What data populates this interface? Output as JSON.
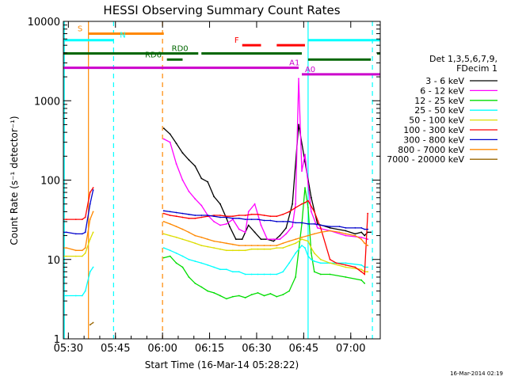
{
  "chart_data": {
    "type": "line",
    "title": "HESSI Observing Summary Count Rates",
    "xlabel": "Start Time (16-Mar-14 05:28:22)",
    "ylabel": "Count Rate (s⁻¹ detector⁻¹)",
    "x_unit": "minutes after 05:28:22 (UT, 16-Mar-2014)",
    "xlim": [
      0,
      101
    ],
    "ylim": [
      1,
      10000
    ],
    "yscale": "log",
    "x_ticks": [
      {
        "value": 1.6,
        "label": "05:30"
      },
      {
        "value": 16.6,
        "label": "05:45"
      },
      {
        "value": 31.6,
        "label": "06:00"
      },
      {
        "value": 46.6,
        "label": "06:15"
      },
      {
        "value": 61.6,
        "label": "06:30"
      },
      {
        "value": 76.6,
        "label": "06:45"
      },
      {
        "value": 91.6,
        "label": "07:00"
      }
    ],
    "y_ticks": [
      {
        "value": 1,
        "label": "1"
      },
      {
        "value": 10,
        "label": "10"
      },
      {
        "value": 100,
        "label": "100"
      },
      {
        "value": 1000,
        "label": "1000"
      },
      {
        "value": 10000,
        "label": "10000"
      }
    ],
    "legend": {
      "position": "right",
      "header": [
        "Det 1,3,5,6,7,9,",
        "FDecim 1"
      ]
    },
    "series": [
      {
        "name": "3 - 6 keV",
        "color": "#000000",
        "x": [
          7.5,
          8.5,
          9.5,
          31.5,
          32,
          34,
          36,
          38,
          40,
          42,
          44,
          46,
          48,
          50,
          52,
          53,
          55,
          57,
          59,
          61,
          63,
          65,
          67,
          69,
          71,
          73,
          75,
          77,
          79,
          81,
          85,
          90,
          93,
          95,
          96,
          97,
          98
        ],
        "y": [
          0,
          0,
          0,
          0,
          450,
          380,
          290,
          220,
          180,
          150,
          105,
          95,
          62,
          50,
          33,
          26,
          18,
          18,
          27,
          22,
          18,
          18,
          17,
          20,
          25,
          50,
          500,
          170,
          60,
          28,
          25,
          23,
          21,
          22,
          20,
          22,
          22
        ]
      },
      {
        "name": "6 - 12 keV",
        "color": "#ff00ff",
        "x": [
          31.5,
          32,
          34,
          36,
          38,
          40,
          42,
          44,
          46,
          48,
          50,
          52,
          54,
          56,
          58,
          59,
          61,
          63,
          65,
          67,
          69,
          71,
          73,
          74,
          75,
          76,
          77,
          78,
          79,
          81,
          85,
          90,
          95,
          97
        ],
        "y": [
          0,
          330,
          300,
          160,
          100,
          72,
          58,
          48,
          36,
          30,
          27,
          28,
          32,
          24,
          22,
          40,
          50,
          27,
          18,
          18,
          18,
          21,
          26,
          50,
          1900,
          130,
          210,
          90,
          40,
          25,
          23,
          20,
          19,
          18
        ]
      },
      {
        "name": "12 - 25 keV",
        "color": "#00dd00",
        "x": [
          31.5,
          32,
          34,
          36,
          38,
          40,
          42,
          44,
          46,
          48,
          50,
          52,
          54,
          56,
          58,
          60,
          62,
          64,
          66,
          68,
          70,
          72,
          74,
          76,
          77,
          78,
          79,
          80,
          82,
          85,
          90,
          95,
          96,
          97
        ],
        "y": [
          0,
          10.5,
          11,
          9,
          8,
          6,
          5,
          4.5,
          4,
          3.8,
          3.5,
          3.2,
          3.4,
          3.5,
          3.3,
          3.6,
          3.8,
          3.5,
          3.7,
          3.4,
          3.6,
          4,
          6,
          28,
          80,
          45,
          12,
          7,
          6.5,
          6.5,
          6,
          5.5,
          5,
          0
        ]
      },
      {
        "name": "25 - 50 keV",
        "color": "#00ffff",
        "x": [
          0,
          1,
          4,
          6,
          7,
          8.5,
          9.5,
          31.5,
          32,
          34,
          36,
          38,
          40,
          42,
          44,
          46,
          48,
          50,
          52,
          54,
          56,
          58,
          60,
          62,
          64,
          66,
          68,
          70,
          72,
          74,
          76,
          77,
          78,
          79,
          80,
          82,
          85,
          90,
          95,
          96,
          97
        ],
        "y": [
          3.5,
          3.5,
          3.5,
          3.5,
          4,
          7,
          8,
          0,
          14,
          13,
          12,
          11,
          10,
          9.5,
          9,
          8.5,
          8,
          7.5,
          7.5,
          7,
          7,
          6.5,
          6.5,
          6.5,
          6.5,
          6.5,
          6.5,
          7,
          9,
          12,
          15,
          14,
          11,
          10,
          9.5,
          9,
          9,
          9,
          8.5,
          8,
          8
        ]
      },
      {
        "name": "50 - 100 keV",
        "color": "#dddd00",
        "x": [
          0,
          1,
          4,
          6,
          7,
          8.5,
          9.5,
          31.5,
          32,
          34,
          36,
          38,
          40,
          42,
          44,
          46,
          48,
          50,
          52,
          54,
          56,
          58,
          60,
          62,
          64,
          66,
          68,
          70,
          72,
          74,
          76,
          78,
          79,
          80,
          82,
          85,
          90,
          95,
          96,
          97
        ],
        "y": [
          11,
          11,
          11,
          11,
          12,
          18,
          22,
          0,
          21,
          20,
          19,
          18,
          17,
          16,
          15,
          14.5,
          14,
          13.5,
          13,
          13,
          13,
          13,
          13.5,
          13.5,
          13.5,
          13.5,
          14,
          14,
          15,
          16,
          18,
          17,
          14,
          12,
          10,
          9,
          8,
          7.5,
          7,
          7
        ]
      },
      {
        "name": "100 - 300 keV",
        "color": "#ff0000",
        "x": [
          0,
          1,
          4,
          6,
          7,
          8.5,
          9.5,
          31.5,
          32,
          34,
          36,
          38,
          40,
          42,
          44,
          46,
          48,
          50,
          52,
          54,
          56,
          58,
          60,
          62,
          64,
          66,
          68,
          70,
          72,
          74,
          76,
          77,
          78,
          80,
          82,
          85,
          87,
          90,
          93,
          95,
          96,
          97
        ],
        "y": [
          32,
          32,
          32,
          32,
          34,
          70,
          80,
          0,
          38,
          36,
          35,
          34,
          33,
          33,
          34,
          35,
          36,
          36,
          35,
          35,
          36,
          36,
          37,
          37,
          36,
          35,
          35,
          37,
          40,
          45,
          50,
          52,
          55,
          40,
          25,
          10,
          9,
          8.5,
          8,
          7,
          6.5,
          38
        ]
      },
      {
        "name": "300 - 800 keV",
        "color": "#0000cc",
        "x": [
          0,
          1,
          4,
          6,
          7,
          8.5,
          9.5,
          31.5,
          32,
          34,
          36,
          38,
          40,
          42,
          44,
          46,
          48,
          50,
          52,
          54,
          56,
          58,
          60,
          62,
          64,
          66,
          68,
          70,
          72,
          74,
          76,
          78,
          80,
          82,
          85,
          88,
          90,
          93,
          95,
          96,
          97
        ],
        "y": [
          22,
          22,
          21,
          21,
          22,
          50,
          75,
          0,
          41,
          40,
          39,
          38,
          37,
          36,
          36,
          36,
          35,
          34,
          34,
          33,
          33,
          32,
          32,
          32,
          31,
          31,
          30,
          30,
          30,
          29,
          29,
          28,
          28,
          27,
          26,
          26,
          25,
          25,
          25,
          24,
          24
        ]
      },
      {
        "name": "800 - 7000 keV",
        "color": "#ff8800",
        "x": [
          0,
          1,
          4,
          6,
          7,
          8.5,
          9.5,
          31.5,
          32,
          34,
          36,
          38,
          40,
          42,
          44,
          46,
          48,
          50,
          52,
          54,
          56,
          58,
          60,
          62,
          64,
          66,
          68,
          70,
          72,
          74,
          76,
          78,
          80,
          82,
          85,
          88,
          90,
          93,
          95,
          96,
          97
        ],
        "y": [
          14,
          14,
          13,
          13,
          14,
          32,
          40,
          0,
          30,
          28,
          26,
          24,
          22,
          20,
          19,
          18,
          17,
          16.5,
          16,
          15.5,
          15,
          15,
          15,
          15,
          15,
          15,
          15,
          16,
          17,
          18,
          19,
          20,
          21,
          22,
          23,
          22,
          21,
          20,
          18,
          16,
          15
        ]
      },
      {
        "name": "7000 - 20000 keV",
        "color": "#996600",
        "x": [
          7.5,
          8.5,
          9.5
        ],
        "y": [
          0,
          1.5,
          1.6
        ]
      }
    ],
    "status_bars": [
      {
        "label": "S",
        "color": "#ff8800",
        "x_start": 8,
        "x_end": 32,
        "y": 7000,
        "label_x": 4.5
      },
      {
        "label": "N",
        "color": "#00ffff",
        "x_start": 0,
        "x_end": 16,
        "y": 5800,
        "label_x": 18
      },
      {
        "label": "N",
        "color": "#00ffff",
        "x_start": 78,
        "x_end": 101,
        "y": 5800,
        "label_x": null
      },
      {
        "label": "F",
        "color": "#ff0000",
        "x_start": 57,
        "x_end": 63,
        "y": 5000,
        "label_x": 54.5
      },
      {
        "label": "F",
        "color": "#ff0000",
        "x_start": 68,
        "x_end": 77,
        "y": 5000,
        "label_x": null
      },
      {
        "label": "RD0",
        "color": "#006600",
        "x_start": 0,
        "x_end": 43,
        "y": 3950,
        "label_x": 34.5
      },
      {
        "label": "RD0",
        "color": "#006600",
        "x_start": 44,
        "x_end": 76,
        "y": 3950,
        "label_x": null
      },
      {
        "label": "RD0",
        "color": "#006600",
        "x_start": 100,
        "x_end": 101,
        "y": 3950,
        "label_x": null
      },
      {
        "label": "RD6",
        "color": "#006600",
        "x_start": 33,
        "x_end": 38,
        "y": 3300,
        "label_x": 26
      },
      {
        "label": "RD6",
        "color": "#006600",
        "x_start": 78,
        "x_end": 98,
        "y": 3300,
        "label_x": null
      },
      {
        "label": "A1",
        "color": "#cc00cc",
        "x_start": 0,
        "x_end": 75,
        "y": 2600,
        "label_x": 72
      },
      {
        "label": "A0",
        "color": "#cc00cc",
        "x_start": 76,
        "x_end": 101,
        "y": 2150,
        "label_x": 77
      }
    ],
    "vertical_markers": [
      {
        "x": 0.3,
        "color": "#00ffff",
        "style": "solid"
      },
      {
        "x": 8,
        "color": "#ff8800",
        "style": "solid"
      },
      {
        "x": 16,
        "color": "#00ffff",
        "style": "dashed"
      },
      {
        "x": 31.6,
        "color": "#ff8800",
        "style": "dashed"
      },
      {
        "x": 78,
        "color": "#00ffff",
        "style": "solid"
      },
      {
        "x": 98.5,
        "color": "#00ffff",
        "style": "dashed"
      }
    ]
  },
  "footer": {
    "timestamp": "16-Mar-2014 02:19"
  }
}
